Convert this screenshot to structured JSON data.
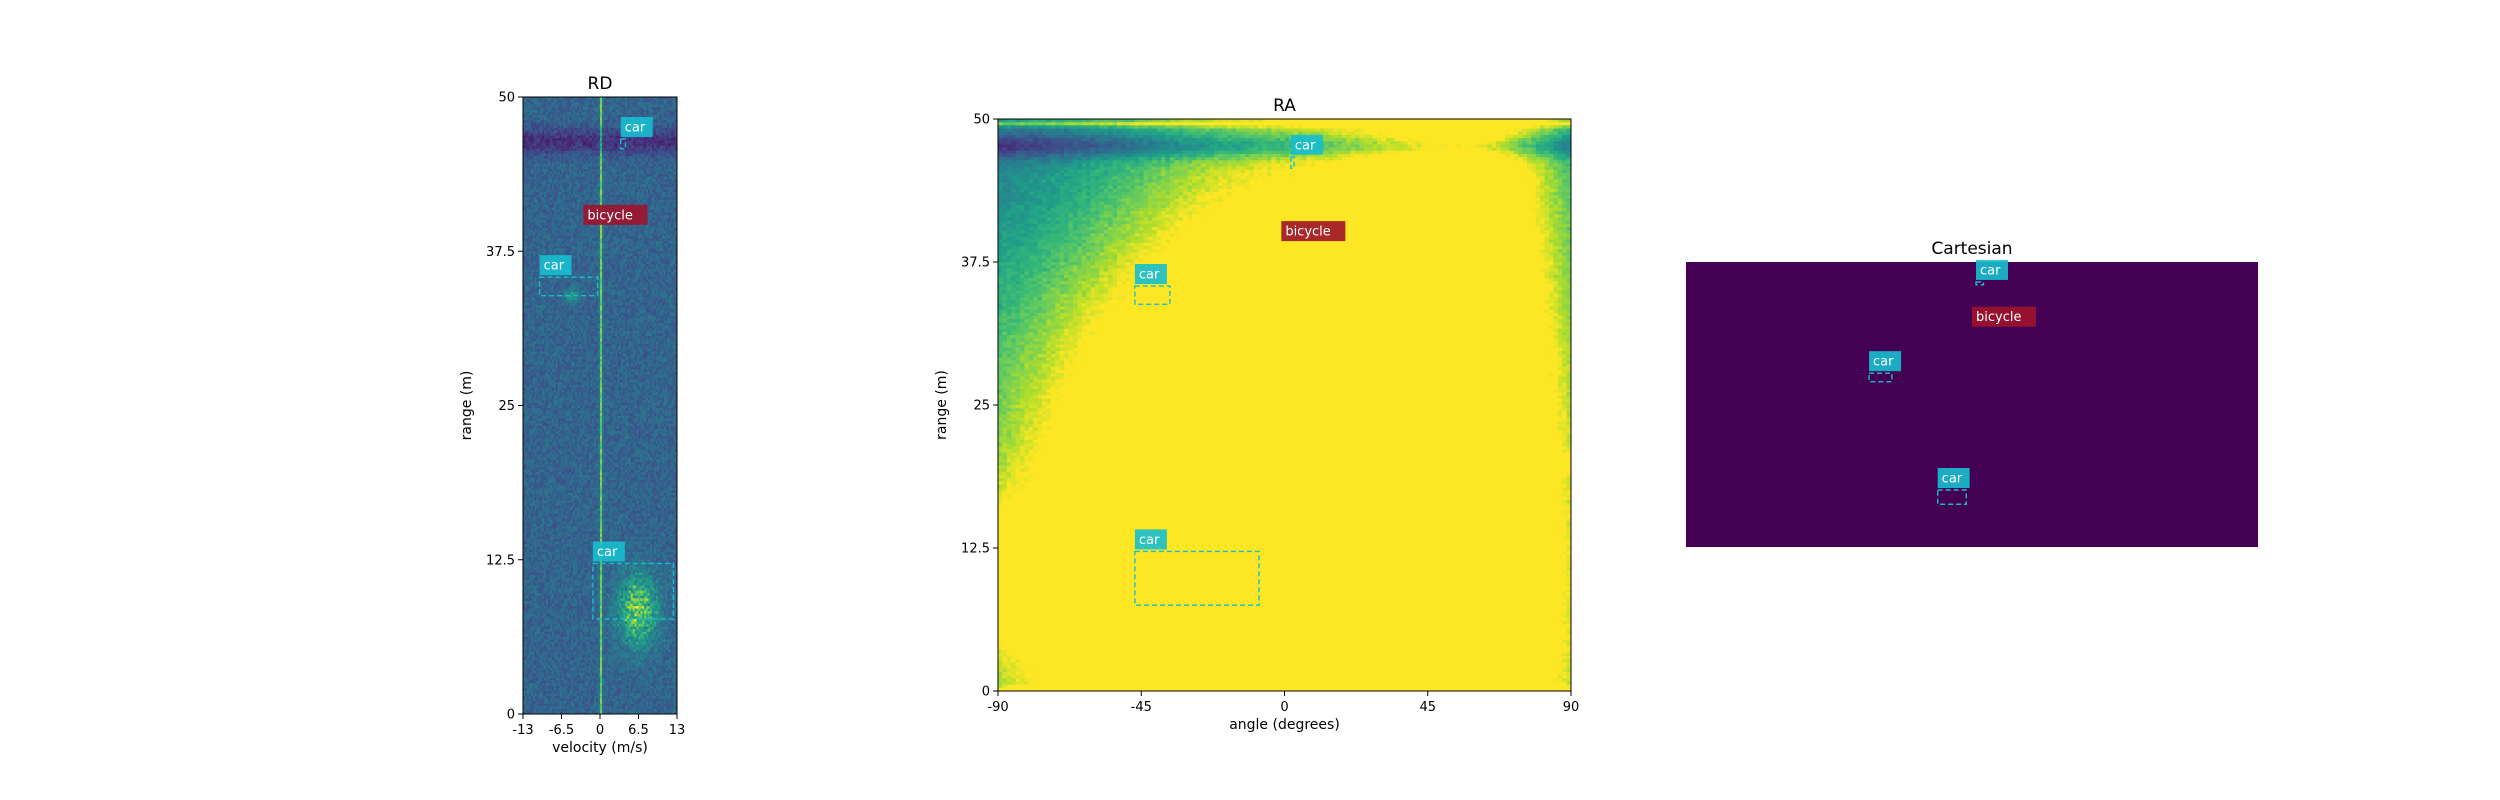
{
  "chart_data": [
    {
      "type": "heatmap",
      "id": "rd",
      "title": "RD",
      "xlabel": "velocity (m/s)",
      "ylabel": "range (m)",
      "xlim": [
        -13,
        13
      ],
      "ylim": [
        0,
        50
      ],
      "xticks": [
        -13,
        -6.5,
        0,
        6.5,
        13
      ],
      "xtick_labels": [
        "-13",
        "-6.5",
        "0",
        "6.5",
        "13"
      ],
      "yticks": [
        0,
        12.5,
        25,
        37.5,
        50
      ],
      "ytick_labels": [
        "0",
        "12.5",
        "25",
        "37.5",
        "50"
      ],
      "colormap": "viridis",
      "annotations": [
        {
          "label": "car",
          "color": "#17becf",
          "x0": 3.5,
          "x1": 4.3,
          "y0": 45.8,
          "y1": 46.6
        },
        {
          "label": "bicycle",
          "color": "#a0132b",
          "x0": -2.8,
          "x1": 3.5,
          "y0": 39.8,
          "y1": 39.8
        },
        {
          "label": "car",
          "color": "#17becf",
          "x0": -10.2,
          "x1": -0.4,
          "y0": 33.9,
          "y1": 35.4
        },
        {
          "label": "car",
          "color": "#17becf",
          "x0": -1.2,
          "x1": 12.4,
          "y0": 7.7,
          "y1": 12.2
        }
      ]
    },
    {
      "type": "heatmap",
      "id": "ra",
      "title": "RA",
      "xlabel": "angle (degrees)",
      "ylabel": "range (m)",
      "xlim": [
        -90,
        90
      ],
      "ylim": [
        0,
        50
      ],
      "xticks": [
        -90,
        -45,
        0,
        45,
        90
      ],
      "xtick_labels": [
        "-90",
        "-45",
        "0",
        "45",
        "90"
      ],
      "yticks": [
        0,
        12.5,
        25,
        37.5,
        50
      ],
      "ytick_labels": [
        "0",
        "12.5",
        "25",
        "37.5",
        "50"
      ],
      "colormap": "viridis",
      "annotations": [
        {
          "label": "car",
          "color": "#17becf",
          "x0": 2,
          "x1": 3,
          "y0": 45.7,
          "y1": 46.7
        },
        {
          "label": "bicycle",
          "color": "#a0132b",
          "x0": -1,
          "x1": 15,
          "y0": 39.5,
          "y1": 39.5
        },
        {
          "label": "car",
          "color": "#17becf",
          "x0": -47,
          "x1": -36,
          "y0": 33.8,
          "y1": 35.4
        },
        {
          "label": "car",
          "color": "#17becf",
          "x0": -47,
          "x1": -8,
          "y0": 7.5,
          "y1": 12.2
        }
      ]
    },
    {
      "type": "heatmap",
      "id": "cartesian",
      "title": "Cartesian",
      "xlabel": "",
      "ylabel": "",
      "xlim": [
        0,
        1
      ],
      "ylim": [
        0,
        1
      ],
      "background": "#440154",
      "annotations": [
        {
          "label": "car",
          "color": "#17becf",
          "x0": 0.507,
          "x1": 0.52,
          "y0": 0.92,
          "y1": 0.93
        },
        {
          "label": "bicycle",
          "color": "#a0132b",
          "x0": 0.5,
          "x1": 0.56,
          "y0": 0.78,
          "y1": 0.78
        },
        {
          "label": "car",
          "color": "#17becf",
          "x0": 0.32,
          "x1": 0.36,
          "y0": 0.58,
          "y1": 0.61
        },
        {
          "label": "car",
          "color": "#17becf",
          "x0": 0.44,
          "x1": 0.49,
          "y0": 0.15,
          "y1": 0.2
        }
      ]
    }
  ]
}
